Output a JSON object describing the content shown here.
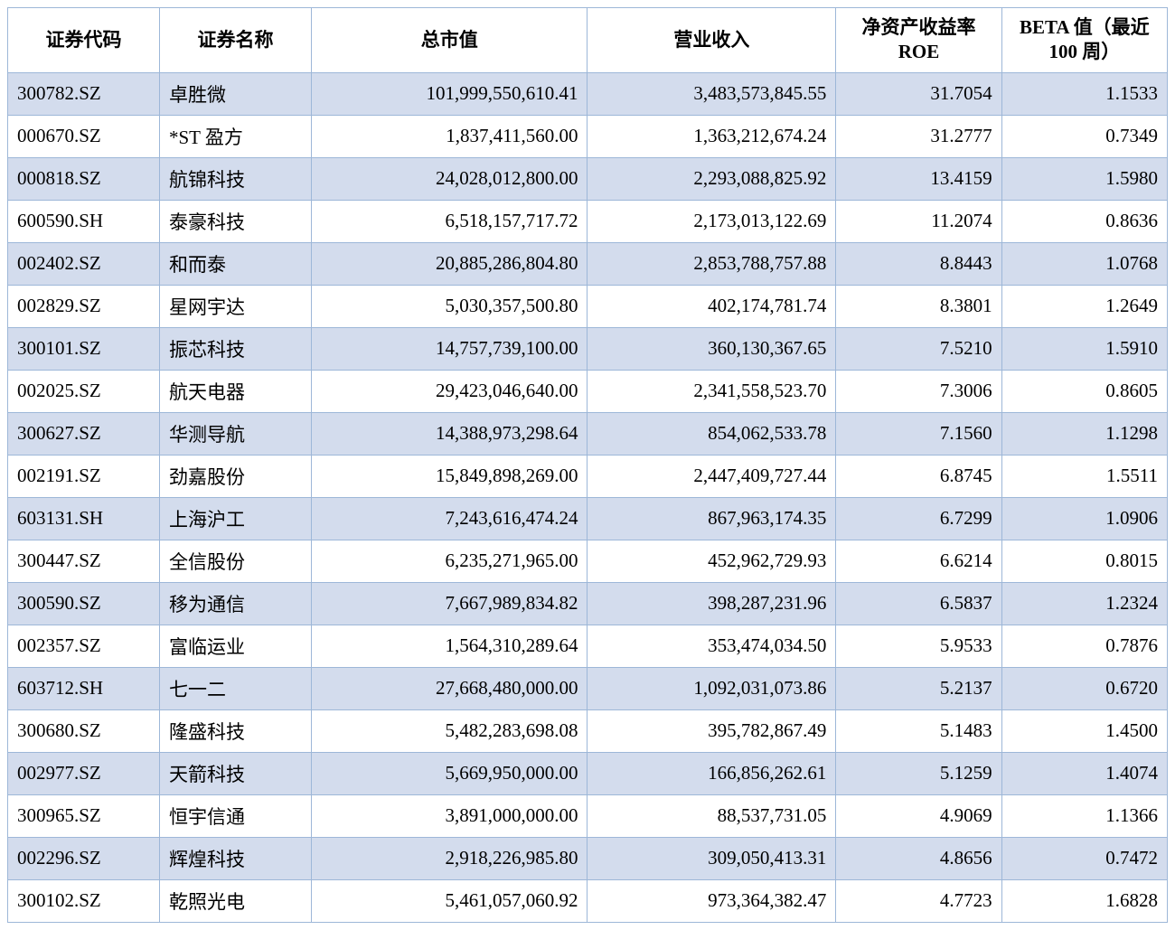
{
  "table": {
    "columns": [
      {
        "key": "code",
        "label": "证券代码",
        "class": "col-code"
      },
      {
        "key": "name",
        "label": "证券名称",
        "class": "col-name"
      },
      {
        "key": "market_cap",
        "label": "总市值",
        "class": "col-cap"
      },
      {
        "key": "revenue",
        "label": "营业收入",
        "class": "col-rev"
      },
      {
        "key": "roe",
        "label": "净资产收益率 ROE",
        "class": "col-roe"
      },
      {
        "key": "beta",
        "label": "BETA 值（最近 100 周）",
        "class": "col-beta"
      }
    ],
    "rows": [
      {
        "code": "300782.SZ",
        "name": "卓胜微",
        "market_cap": "101,999,550,610.41",
        "revenue": "3,483,573,845.55",
        "roe": "31.7054",
        "beta": "1.1533"
      },
      {
        "code": "000670.SZ",
        "name": "*ST 盈方",
        "market_cap": "1,837,411,560.00",
        "revenue": "1,363,212,674.24",
        "roe": "31.2777",
        "beta": "0.7349"
      },
      {
        "code": "000818.SZ",
        "name": "航锦科技",
        "market_cap": "24,028,012,800.00",
        "revenue": "2,293,088,825.92",
        "roe": "13.4159",
        "beta": "1.5980"
      },
      {
        "code": "600590.SH",
        "name": "泰豪科技",
        "market_cap": "6,518,157,717.72",
        "revenue": "2,173,013,122.69",
        "roe": "11.2074",
        "beta": "0.8636"
      },
      {
        "code": "002402.SZ",
        "name": "和而泰",
        "market_cap": "20,885,286,804.80",
        "revenue": "2,853,788,757.88",
        "roe": "8.8443",
        "beta": "1.0768"
      },
      {
        "code": "002829.SZ",
        "name": "星网宇达",
        "market_cap": "5,030,357,500.80",
        "revenue": "402,174,781.74",
        "roe": "8.3801",
        "beta": "1.2649"
      },
      {
        "code": "300101.SZ",
        "name": "振芯科技",
        "market_cap": "14,757,739,100.00",
        "revenue": "360,130,367.65",
        "roe": "7.5210",
        "beta": "1.5910"
      },
      {
        "code": "002025.SZ",
        "name": "航天电器",
        "market_cap": "29,423,046,640.00",
        "revenue": "2,341,558,523.70",
        "roe": "7.3006",
        "beta": "0.8605"
      },
      {
        "code": "300627.SZ",
        "name": "华测导航",
        "market_cap": "14,388,973,298.64",
        "revenue": "854,062,533.78",
        "roe": "7.1560",
        "beta": "1.1298"
      },
      {
        "code": "002191.SZ",
        "name": "劲嘉股份",
        "market_cap": "15,849,898,269.00",
        "revenue": "2,447,409,727.44",
        "roe": "6.8745",
        "beta": "1.5511"
      },
      {
        "code": "603131.SH",
        "name": "上海沪工",
        "market_cap": "7,243,616,474.24",
        "revenue": "867,963,174.35",
        "roe": "6.7299",
        "beta": "1.0906"
      },
      {
        "code": "300447.SZ",
        "name": "全信股份",
        "market_cap": "6,235,271,965.00",
        "revenue": "452,962,729.93",
        "roe": "6.6214",
        "beta": "0.8015"
      },
      {
        "code": "300590.SZ",
        "name": "移为通信",
        "market_cap": "7,667,989,834.82",
        "revenue": "398,287,231.96",
        "roe": "6.5837",
        "beta": "1.2324"
      },
      {
        "code": "002357.SZ",
        "name": "富临运业",
        "market_cap": "1,564,310,289.64",
        "revenue": "353,474,034.50",
        "roe": "5.9533",
        "beta": "0.7876"
      },
      {
        "code": "603712.SH",
        "name": "七一二",
        "market_cap": "27,668,480,000.00",
        "revenue": "1,092,031,073.86",
        "roe": "5.2137",
        "beta": "0.6720"
      },
      {
        "code": "300680.SZ",
        "name": "隆盛科技",
        "market_cap": "5,482,283,698.08",
        "revenue": "395,782,867.49",
        "roe": "5.1483",
        "beta": "1.4500"
      },
      {
        "code": "002977.SZ",
        "name": "天箭科技",
        "market_cap": "5,669,950,000.00",
        "revenue": "166,856,262.61",
        "roe": "5.1259",
        "beta": "1.4074"
      },
      {
        "code": "300965.SZ",
        "name": "恒宇信通",
        "market_cap": "3,891,000,000.00",
        "revenue": "88,537,731.05",
        "roe": "4.9069",
        "beta": "1.1366"
      },
      {
        "code": "002296.SZ",
        "name": "辉煌科技",
        "market_cap": "2,918,226,985.80",
        "revenue": "309,050,413.31",
        "roe": "4.8656",
        "beta": "0.7472"
      },
      {
        "code": "300102.SZ",
        "name": "乾照光电",
        "market_cap": "5,461,057,060.92",
        "revenue": "973,364,382.47",
        "roe": "4.7723",
        "beta": "1.6828"
      }
    ],
    "styling": {
      "border_color": "#9db7d8",
      "odd_row_bg": "#d3dced",
      "even_row_bg": "#ffffff",
      "header_bg": "#ffffff",
      "text_color": "#000000",
      "font_family": "SimSun",
      "cell_fontsize": 21,
      "header_fontweight": "bold"
    }
  }
}
